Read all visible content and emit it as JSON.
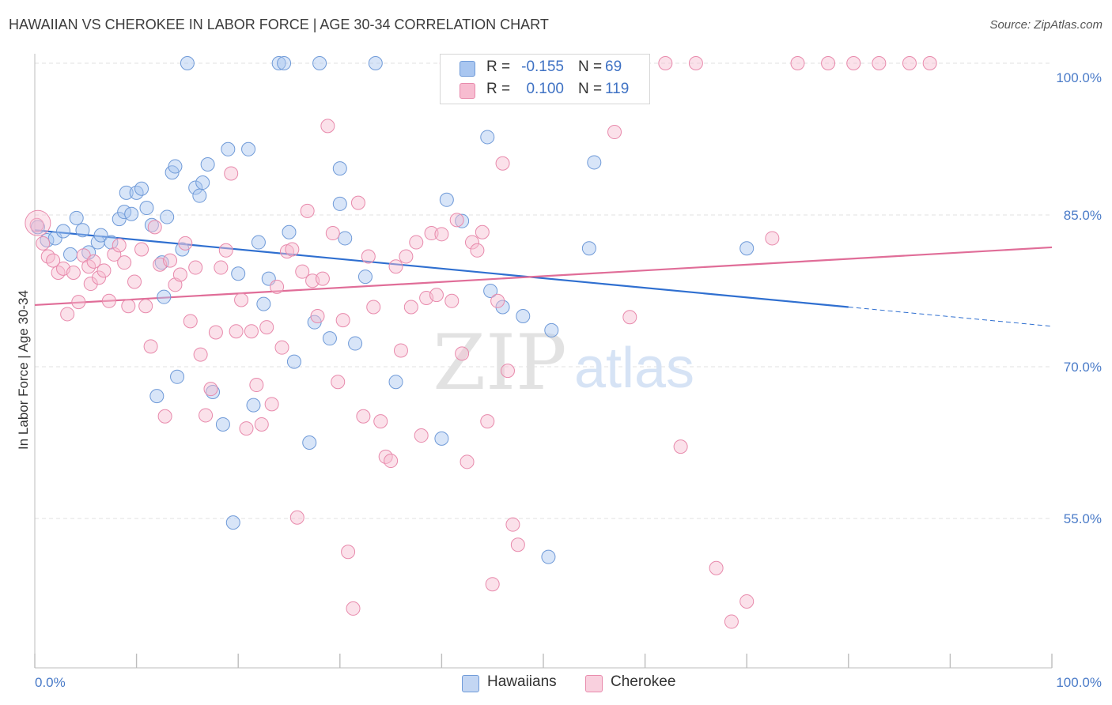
{
  "title": "HAWAIIAN VS CHEROKEE IN LABOR FORCE | AGE 30-34 CORRELATION CHART",
  "source": "Source: ZipAtlas.com",
  "watermark": {
    "zip": "ZIP",
    "atlas": "atlas"
  },
  "legend": {
    "r_label": "R =",
    "n_label": "N =",
    "rows": [
      {
        "r": "-0.155",
        "n": "69",
        "color": "#a9c6f0",
        "border": "#6f9ad8",
        "text_color": "#3f72c4"
      },
      {
        "r": "0.100",
        "n": "119",
        "color": "#f7bcd0",
        "border": "#e88aac",
        "text_color": "#3f72c4"
      }
    ]
  },
  "bottom_legend": [
    "Hawaiians",
    "Cherokee"
  ],
  "chart_data": {
    "type": "scatter",
    "title": "HAWAIIAN VS CHEROKEE IN LABOR FORCE | AGE 30-34 CORRELATION CHART",
    "xlabel": "",
    "ylabel": "In Labor Force | Age 30-34",
    "xlim": [
      0,
      100
    ],
    "ylim": [
      42,
      102
    ],
    "x_tick_labels": [
      "0.0%",
      "100.0%"
    ],
    "y_ticks": [
      55,
      70,
      85,
      100
    ],
    "y_tick_labels": [
      "55.0%",
      "70.0%",
      "85.0%",
      "100.0%"
    ],
    "grid": true,
    "legend_position": "top-center",
    "series": [
      {
        "name": "Hawaiians",
        "color": "#6f9ad8",
        "fill": "#a9c6f0",
        "trend": {
          "x": [
            0,
            80
          ],
          "y": [
            83.5,
            75.9
          ],
          "dashed_to": [
            100,
            74.0
          ],
          "color": "#2f6fd0"
        },
        "points": [
          [
            0.3,
            83.8
          ],
          [
            1.2,
            82.5
          ],
          [
            2.0,
            82.7
          ],
          [
            2.8,
            83.4
          ],
          [
            3.5,
            81.1
          ],
          [
            4.1,
            84.7
          ],
          [
            4.7,
            83.5
          ],
          [
            5.3,
            81.3
          ],
          [
            6.2,
            82.3
          ],
          [
            6.5,
            83.0
          ],
          [
            7.5,
            82.3
          ],
          [
            8.3,
            84.6
          ],
          [
            8.8,
            85.3
          ],
          [
            9.0,
            87.2
          ],
          [
            9.5,
            85.1
          ],
          [
            10.0,
            87.2
          ],
          [
            10.5,
            87.6
          ],
          [
            11.0,
            85.7
          ],
          [
            11.5,
            84.0
          ],
          [
            12.0,
            67.1
          ],
          [
            12.5,
            80.3
          ],
          [
            12.7,
            76.9
          ],
          [
            13.0,
            84.8
          ],
          [
            13.5,
            89.2
          ],
          [
            13.8,
            89.8
          ],
          [
            14.0,
            69.0
          ],
          [
            14.5,
            81.6
          ],
          [
            15.0,
            100
          ],
          [
            15.8,
            87.7
          ],
          [
            16.2,
            86.9
          ],
          [
            16.5,
            88.2
          ],
          [
            17.0,
            90.0
          ],
          [
            17.5,
            67.5
          ],
          [
            18.5,
            64.3
          ],
          [
            19.0,
            91.5
          ],
          [
            19.5,
            54.6
          ],
          [
            20.0,
            79.2
          ],
          [
            21.0,
            91.5
          ],
          [
            21.5,
            66.2
          ],
          [
            22.0,
            82.3
          ],
          [
            22.5,
            76.2
          ],
          [
            23.0,
            78.7
          ],
          [
            24.0,
            100
          ],
          [
            24.5,
            100
          ],
          [
            25.0,
            83.3
          ],
          [
            27.0,
            62.5
          ],
          [
            27.5,
            74.4
          ],
          [
            28.0,
            100
          ],
          [
            29.0,
            72.8
          ],
          [
            30.0,
            89.6
          ],
          [
            30.5,
            82.7
          ],
          [
            31.5,
            72.3
          ],
          [
            32.5,
            78.9
          ],
          [
            33.5,
            100
          ],
          [
            35.5,
            68.5
          ],
          [
            40.0,
            62.9
          ],
          [
            40.5,
            86.5
          ],
          [
            42.0,
            84.4
          ],
          [
            44.5,
            92.7
          ],
          [
            44.8,
            77.5
          ],
          [
            46.0,
            75.9
          ],
          [
            48.0,
            75.0
          ],
          [
            50.5,
            51.2
          ],
          [
            50.8,
            73.6
          ],
          [
            54.5,
            81.7
          ],
          [
            55.0,
            90.2
          ],
          [
            70.0,
            81.7
          ],
          [
            30.0,
            86.1
          ],
          [
            25.5,
            70.5
          ]
        ]
      },
      {
        "name": "Cherokee",
        "color": "#e88aac",
        "fill": "#f7bcd0",
        "trend": {
          "x": [
            0,
            100
          ],
          "y": [
            76.1,
            81.8
          ],
          "color": "#e06d98"
        },
        "points": [
          [
            0.2,
            84.0
          ],
          [
            0.8,
            82.2
          ],
          [
            1.3,
            80.9
          ],
          [
            1.8,
            80.5
          ],
          [
            2.3,
            79.3
          ],
          [
            2.8,
            79.7
          ],
          [
            3.2,
            75.2
          ],
          [
            3.8,
            79.3
          ],
          [
            4.3,
            76.4
          ],
          [
            4.8,
            81.0
          ],
          [
            5.3,
            79.9
          ],
          [
            5.5,
            78.2
          ],
          [
            5.8,
            80.4
          ],
          [
            6.3,
            78.8
          ],
          [
            6.8,
            79.5
          ],
          [
            7.3,
            76.5
          ],
          [
            7.8,
            81.1
          ],
          [
            8.3,
            82.0
          ],
          [
            8.8,
            80.3
          ],
          [
            9.2,
            76.0
          ],
          [
            9.8,
            78.4
          ],
          [
            10.5,
            81.6
          ],
          [
            10.9,
            76.0
          ],
          [
            11.4,
            72.0
          ],
          [
            11.8,
            83.8
          ],
          [
            12.3,
            80.1
          ],
          [
            12.8,
            65.1
          ],
          [
            13.3,
            80.5
          ],
          [
            13.8,
            78.1
          ],
          [
            14.3,
            79.1
          ],
          [
            14.8,
            82.2
          ],
          [
            15.3,
            74.5
          ],
          [
            15.8,
            79.8
          ],
          [
            16.3,
            71.2
          ],
          [
            16.8,
            65.2
          ],
          [
            17.3,
            67.8
          ],
          [
            17.8,
            73.4
          ],
          [
            18.3,
            79.8
          ],
          [
            18.8,
            81.5
          ],
          [
            19.3,
            89.1
          ],
          [
            19.8,
            73.5
          ],
          [
            20.3,
            76.6
          ],
          [
            20.8,
            63.9
          ],
          [
            21.3,
            73.5
          ],
          [
            21.8,
            68.2
          ],
          [
            22.3,
            64.3
          ],
          [
            22.8,
            73.9
          ],
          [
            23.3,
            66.3
          ],
          [
            23.8,
            77.9
          ],
          [
            24.3,
            71.9
          ],
          [
            24.8,
            81.4
          ],
          [
            25.3,
            81.6
          ],
          [
            25.8,
            55.1
          ],
          [
            26.3,
            79.4
          ],
          [
            26.8,
            85.4
          ],
          [
            27.3,
            78.5
          ],
          [
            27.8,
            75.0
          ],
          [
            28.3,
            78.7
          ],
          [
            28.8,
            93.8
          ],
          [
            29.3,
            83.2
          ],
          [
            29.8,
            68.5
          ],
          [
            30.3,
            74.6
          ],
          [
            30.8,
            51.7
          ],
          [
            31.3,
            46.1
          ],
          [
            31.8,
            86.2
          ],
          [
            32.3,
            65.1
          ],
          [
            32.8,
            80.9
          ],
          [
            33.3,
            75.9
          ],
          [
            34.0,
            64.6
          ],
          [
            34.5,
            61.1
          ],
          [
            35.0,
            60.7
          ],
          [
            35.5,
            79.9
          ],
          [
            36.0,
            71.6
          ],
          [
            36.5,
            80.9
          ],
          [
            37.0,
            75.9
          ],
          [
            37.5,
            82.3
          ],
          [
            38.0,
            63.2
          ],
          [
            38.5,
            76.8
          ],
          [
            39.0,
            83.2
          ],
          [
            39.5,
            77.1
          ],
          [
            40.0,
            83.1
          ],
          [
            40.5,
            100
          ],
          [
            41.0,
            76.5
          ],
          [
            41.5,
            84.5
          ],
          [
            42.0,
            71.3
          ],
          [
            42.5,
            60.6
          ],
          [
            43.0,
            82.3
          ],
          [
            43.5,
            81.5
          ],
          [
            44.0,
            83.3
          ],
          [
            44.5,
            64.6
          ],
          [
            45.0,
            48.5
          ],
          [
            45.5,
            76.5
          ],
          [
            46.0,
            90.1
          ],
          [
            46.5,
            69.6
          ],
          [
            47.0,
            54.4
          ],
          [
            47.5,
            52.4
          ],
          [
            48.0,
            100
          ],
          [
            49.0,
            100
          ],
          [
            50.0,
            100
          ],
          [
            51.0,
            100
          ],
          [
            52.5,
            100
          ],
          [
            53.0,
            100
          ],
          [
            54.0,
            100
          ],
          [
            55.0,
            97.0
          ],
          [
            57.0,
            93.2
          ],
          [
            58.5,
            74.9
          ],
          [
            62.0,
            100
          ],
          [
            63.5,
            62.1
          ],
          [
            65.0,
            100
          ],
          [
            67.0,
            50.1
          ],
          [
            68.5,
            44.8
          ],
          [
            70.0,
            46.8
          ],
          [
            72.5,
            82.7
          ],
          [
            75.0,
            100
          ],
          [
            78.0,
            100
          ],
          [
            80.5,
            100
          ],
          [
            83.0,
            100
          ],
          [
            86.0,
            100
          ],
          [
            88.0,
            100
          ]
        ]
      }
    ]
  }
}
